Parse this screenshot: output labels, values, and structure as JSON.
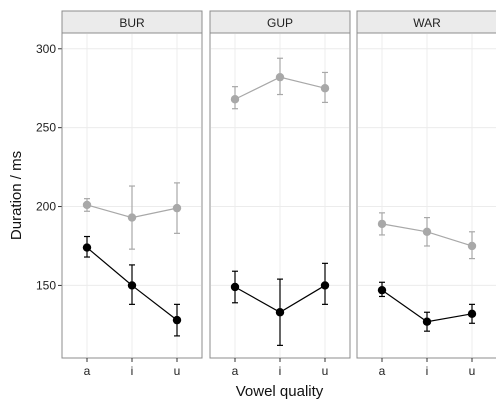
{
  "chart_data": {
    "type": "line",
    "xlabel": "Vowel quality",
    "ylabel": "Duration / ms",
    "categories": [
      "a",
      "i",
      "u"
    ],
    "ylim": [
      104,
      310
    ],
    "yticks": [
      150,
      200,
      250,
      300
    ],
    "grid": true,
    "colors": {
      "grey_series": "#a8a8a8",
      "black_series": "#000000",
      "strip": "#ebebeb",
      "panel_border": "#8c8c8c",
      "grid": "#ececec"
    },
    "panels": [
      {
        "name": "BUR",
        "series": [
          {
            "color": "grey",
            "values": [
              201,
              193,
              199
            ],
            "lower": [
              197,
              173,
              183
            ],
            "upper": [
              205,
              213,
              215
            ]
          },
          {
            "color": "black",
            "values": [
              174,
              150,
              128
            ],
            "lower": [
              168,
              138,
              118
            ],
            "upper": [
              181,
              163,
              138
            ]
          }
        ]
      },
      {
        "name": "GUP",
        "series": [
          {
            "color": "grey",
            "values": [
              268,
              282,
              275
            ],
            "lower": [
              262,
              271,
              266
            ],
            "upper": [
              276,
              294,
              285
            ]
          },
          {
            "color": "black",
            "values": [
              149,
              133,
              150
            ],
            "lower": [
              139,
              112,
              138
            ],
            "upper": [
              159,
              154,
              164
            ]
          }
        ]
      },
      {
        "name": "WAR",
        "series": [
          {
            "color": "grey",
            "values": [
              189,
              184,
              175
            ],
            "lower": [
              182,
              175,
              167
            ],
            "upper": [
              196,
              193,
              184
            ]
          },
          {
            "color": "black",
            "values": [
              147,
              127,
              132
            ],
            "lower": [
              143,
              121,
              126
            ],
            "upper": [
              152,
              133,
              138
            ]
          }
        ]
      }
    ]
  }
}
